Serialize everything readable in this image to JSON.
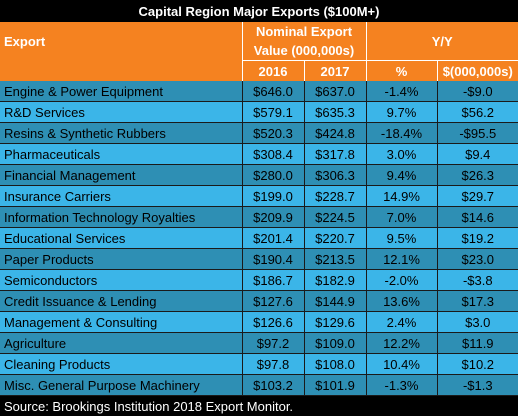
{
  "chart_data": {
    "type": "table",
    "title": "Capital Region Major Exports ($100M+)",
    "header": {
      "export": "Export",
      "nominal_group": "Nominal Export Value (000,000s)",
      "yy_group": "Y/Y",
      "col_2016": "2016",
      "col_2017": "2017",
      "col_pct": "%",
      "col_dollar": "$(000,000s)"
    },
    "rows": [
      {
        "export": "Engine & Power Equipment",
        "v2016": "$646.0",
        "v2017": "$637.0",
        "pct": "-1.4%",
        "change": "-$9.0"
      },
      {
        "export": "R&D Services",
        "v2016": "$579.1",
        "v2017": "$635.3",
        "pct": "9.7%",
        "change": "$56.2"
      },
      {
        "export": "Resins & Synthetic  Rubbers",
        "v2016": "$520.3",
        "v2017": "$424.8",
        "pct": "-18.4%",
        "change": "-$95.5"
      },
      {
        "export": "Pharmaceuticals",
        "v2016": "$308.4",
        "v2017": "$317.8",
        "pct": "3.0%",
        "change": "$9.4"
      },
      {
        "export": "Financial Management",
        "v2016": "$280.0",
        "v2017": "$306.3",
        "pct": "9.4%",
        "change": "$26.3"
      },
      {
        "export": "Insurance Carriers",
        "v2016": "$199.0",
        "v2017": "$228.7",
        "pct": "14.9%",
        "change": "$29.7"
      },
      {
        "export": "Information Technology Royalties",
        "v2016": "$209.9",
        "v2017": "$224.5",
        "pct": "7.0%",
        "change": "$14.6"
      },
      {
        "export": "Educational Services",
        "v2016": "$201.4",
        "v2017": "$220.7",
        "pct": "9.5%",
        "change": "$19.2"
      },
      {
        "export": "Paper Products",
        "v2016": "$190.4",
        "v2017": "$213.5",
        "pct": "12.1%",
        "change": "$23.0"
      },
      {
        "export": "Semiconductors",
        "v2016": "$186.7",
        "v2017": "$182.9",
        "pct": "-2.0%",
        "change": "-$3.8"
      },
      {
        "export": "Credit Issuance & Lending",
        "v2016": "$127.6",
        "v2017": "$144.9",
        "pct": "13.6%",
        "change": "$17.3"
      },
      {
        "export": "Management & Consulting",
        "v2016": "$126.6",
        "v2017": "$129.6",
        "pct": "2.4%",
        "change": "$3.0"
      },
      {
        "export": "Agriculture",
        "v2016": "$97.2",
        "v2017": "$109.0",
        "pct": "12.2%",
        "change": "$11.9"
      },
      {
        "export": "Cleaning Products",
        "v2016": "$97.8",
        "v2017": "$108.0",
        "pct": "10.4%",
        "change": "$10.2"
      },
      {
        "export": "Misc. General Purpose Machinery",
        "v2016": "$103.2",
        "v2017": "$101.9",
        "pct": "-1.3%",
        "change": "-$1.3"
      }
    ],
    "source": "Source: Brookings Institution 2018 Export Monitor.",
    "colors": {
      "title_bg": "#000000",
      "header_bg": "#f58220",
      "row_dark": "#2e8fb4",
      "row_light": "#3bb5e8"
    }
  }
}
